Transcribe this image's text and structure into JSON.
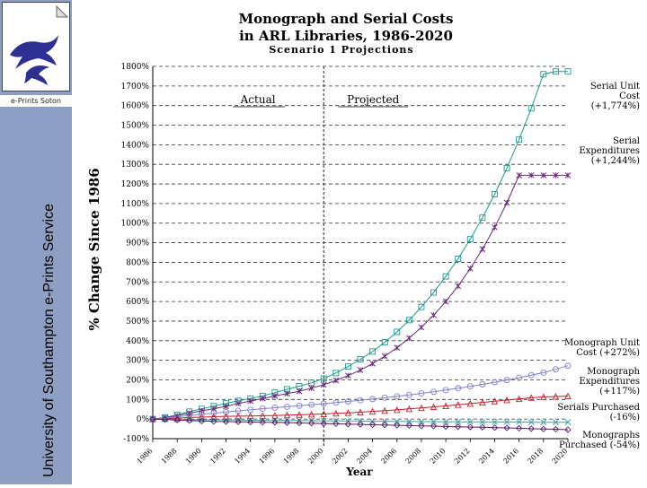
{
  "sidebar": {
    "eprints_label": "e-Prints Soton",
    "vertical_title": "University of Southampton e-Prints Service",
    "logo_icon": "dolphin-logo-icon",
    "bg_color": "#8f9fc4"
  },
  "chart_data": {
    "type": "line",
    "title": "Monograph and Serial Costs",
    "title_line2": "in ARL Libraries, 1986-2020",
    "subtitle": "Scenario 1 Projections",
    "xlabel": "Year",
    "ylabel": "% Change Since 1986",
    "ylim": [
      -100,
      1800
    ],
    "grid": "horizontal-dashed",
    "y_ticks": [
      "-100%",
      "0%",
      "100%",
      "200%",
      "300%",
      "400%",
      "500%",
      "600%",
      "700%",
      "800%",
      "900%",
      "1000%",
      "1100%",
      "1200%",
      "1300%",
      "1400%",
      "1500%",
      "1600%",
      "1700%",
      "1800%"
    ],
    "x_tick_labels": [
      "1986",
      "1988",
      "1990",
      "1992",
      "1994",
      "1996",
      "1998",
      "2000",
      "2002",
      "2004",
      "2006",
      "2008",
      "2010",
      "2012",
      "2014",
      "2016",
      "2018",
      "2020"
    ],
    "region_actual": "Actual",
    "region_projected": "Projected",
    "divider_year": 2000,
    "x": [
      1986,
      1987,
      1988,
      1989,
      1990,
      1991,
      1992,
      1993,
      1994,
      1995,
      1996,
      1997,
      1998,
      1999,
      2000,
      2001,
      2002,
      2003,
      2004,
      2005,
      2006,
      2007,
      2008,
      2009,
      2010,
      2011,
      2012,
      2013,
      2014,
      2015,
      2016,
      2017,
      2018,
      2019,
      2020
    ],
    "series": [
      {
        "name": "Serial Unit Cost",
        "label_lines": [
          "Serial Unit",
          "Cost",
          "(+1,774%)"
        ],
        "color": "#1a9a8a",
        "marker": "square",
        "values": [
          0,
          8,
          22,
          38,
          52,
          66,
          80,
          93,
          105,
          118,
          135,
          152,
          168,
          185,
          207,
          235,
          268,
          305,
          345,
          392,
          445,
          505,
          572,
          646,
          728,
          818,
          918,
          1028,
          1148,
          1281,
          1426,
          1586,
          1760,
          1774,
          1774
        ]
      },
      {
        "name": "Serial Expenditures",
        "label_lines": [
          "Serial",
          "Expenditures",
          "(+1,244%)"
        ],
        "color": "#6a2a7a",
        "marker": "star",
        "values": [
          0,
          6,
          17,
          30,
          42,
          53,
          65,
          80,
          92,
          105,
          118,
          130,
          142,
          158,
          175,
          197,
          222,
          250,
          283,
          321,
          364,
          413,
          468,
          530,
          600,
          679,
          768,
          867,
          979,
          1104,
          1244,
          1244,
          1244,
          1244,
          1244
        ]
      },
      {
        "name": "Monograph Unit Cost",
        "label_lines": [
          "Monograph Unit",
          "Cost (+272%)"
        ],
        "color": "#8080d0",
        "marker": "circle",
        "values": [
          0,
          5,
          12,
          18,
          25,
          30,
          36,
          42,
          47,
          53,
          58,
          63,
          68,
          73,
          78,
          84,
          90,
          96,
          102,
          109,
          116,
          123,
          131,
          139,
          148,
          157,
          167,
          177,
          188,
          199,
          211,
          224,
          237,
          254,
          272
        ]
      },
      {
        "name": "Monograph Expenditures",
        "label_lines": [
          "Monograph",
          "Expenditures",
          "(+117%)"
        ],
        "color": "#c0202a",
        "marker": "triangle",
        "values": [
          0,
          2,
          5,
          8,
          10,
          12,
          14,
          15,
          16,
          17,
          18,
          20,
          22,
          24,
          26,
          29,
          32,
          35,
          39,
          43,
          47,
          52,
          57,
          62,
          67,
          73,
          79,
          85,
          91,
          97,
          103,
          109,
          113,
          115,
          117
        ]
      },
      {
        "name": "Serials Purchased",
        "label_lines": [
          "Serials Purchased",
          "(-16%)"
        ],
        "color": "#40a0a0",
        "marker": "x",
        "values": [
          0,
          -1,
          -2,
          -3,
          -4,
          -4,
          -5,
          -5,
          -6,
          -6,
          -7,
          -7,
          -8,
          -8,
          -9,
          -9,
          -10,
          -10,
          -11,
          -11,
          -12,
          -12,
          -13,
          -13,
          -14,
          -14,
          -14,
          -15,
          -15,
          -15,
          -15,
          -16,
          -16,
          -16,
          -16
        ]
      },
      {
        "name": "Monographs Purchased",
        "label_lines": [
          "Monographs",
          "Purchased (-54%)"
        ],
        "color": "#5a1a6a",
        "marker": "diamond",
        "values": [
          0,
          -2,
          -5,
          -8,
          -10,
          -12,
          -13,
          -14,
          -15,
          -16,
          -17,
          -18,
          -20,
          -21,
          -23,
          -24,
          -26,
          -27,
          -29,
          -30,
          -32,
          -33,
          -35,
          -36,
          -38,
          -39,
          -41,
          -42,
          -44,
          -45,
          -47,
          -49,
          -51,
          -52,
          -54
        ]
      }
    ]
  }
}
